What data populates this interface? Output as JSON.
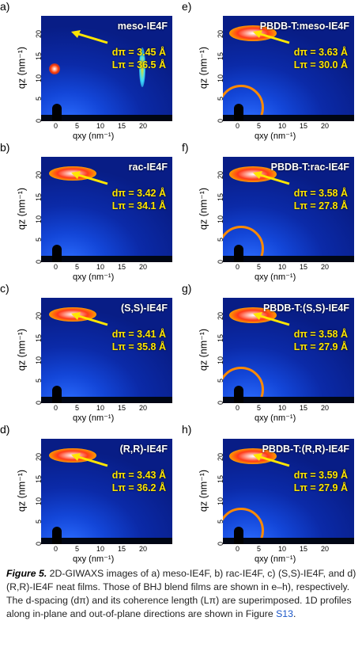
{
  "panels": [
    {
      "label": "a)",
      "title": "meso-IE4F",
      "d": "dπ = 3.45 Å",
      "L": "Lπ = 36.5 Å"
    },
    {
      "label": "b)",
      "title": "rac-IE4F",
      "d": "dπ = 3.42 Å",
      "L": "Lπ = 34.1 Å"
    },
    {
      "label": "c)",
      "title": "(S,S)-IE4F",
      "d": "dπ = 3.41 Å",
      "L": "Lπ = 35.8 Å"
    },
    {
      "label": "d)",
      "title": "(R,R)-IE4F",
      "d": "dπ = 3.43 Å",
      "L": "Lπ = 36.2 Å"
    },
    {
      "label": "e)",
      "title": "PBDB-T:meso-IE4F",
      "d": "dπ = 3.63 Å",
      "L": "Lπ = 30.0 Å"
    },
    {
      "label": "f)",
      "title": "PBDB-T:rac-IE4F",
      "d": "dπ = 3.58 Å",
      "L": "Lπ = 27.8 Å"
    },
    {
      "label": "g)",
      "title": "PBDB-T:(S,S)-IE4F",
      "d": "dπ = 3.58 Å",
      "L": "Lπ = 27.9 Å"
    },
    {
      "label": "h)",
      "title": "PBDB-T:(R,R)-IE4F",
      "d": "dπ = 3.59 Å",
      "L": "Lπ = 27.9 Å"
    }
  ],
  "axes": {
    "ylabel": "qz (nm⁻¹)",
    "xlabel": "qxy (nm⁻¹)",
    "yticks": [
      "0",
      "5",
      "10",
      "15",
      "20"
    ],
    "xticks": [
      "0",
      "5",
      "10",
      "15",
      "20"
    ]
  },
  "caption": {
    "fig": "Figure 5.",
    "text": " 2D-GIWAXS images of a) meso-IE4F, b) rac-IE4F, c) (S,S)-IE4F, and d) (R,R)-IE4F neat films. Those of BHJ blend films are shown in e–h), respectively. The d-spacing (dπ) and its coherence length (Lπ) are superimposed. 1D profiles along in-plane and out-of-plane directions are shown in Figure ",
    "link": "S13",
    "end": "."
  }
}
